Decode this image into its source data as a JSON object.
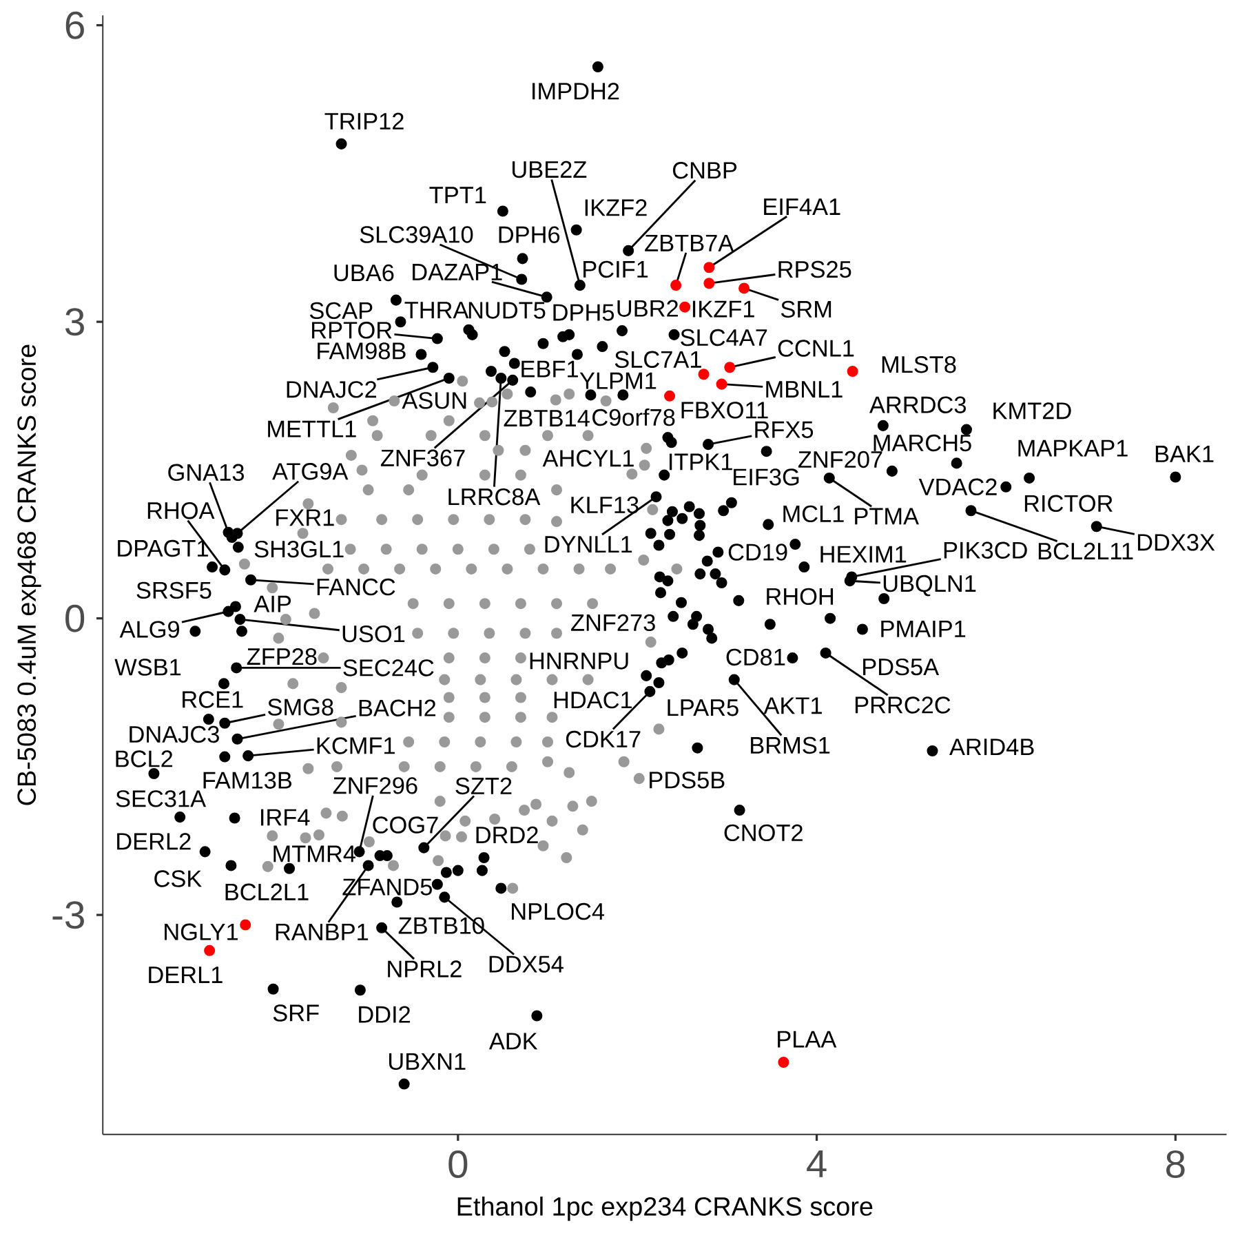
{
  "chart_data": {
    "type": "scatter",
    "xlabel": "Ethanol 1pc exp234 CRANKS score",
    "ylabel": "CB-5083 0.4uM exp468 CRANKS score",
    "xlim": [
      -3.96,
      8.57
    ],
    "ylim": [
      -5.22,
      6.1
    ],
    "xticks": [
      0,
      4,
      8
    ],
    "yticks": [
      -3,
      0,
      3,
      6
    ],
    "marker": "circle",
    "series": [
      {
        "color": "#999999",
        "x": [
          -1.39,
          0.05,
          -0.71,
          1.24,
          1.09,
          0.24,
          0.55,
          1.65,
          0.38,
          -1.19,
          -1.07,
          -1.67,
          -1.73,
          -2.38,
          -2.07,
          -1.92,
          -2.0,
          -1.84,
          -2.0,
          -1.67,
          1.94,
          2.07,
          2.15,
          1.85,
          1.24,
          0.87,
          2.1,
          2.08,
          2.17,
          2.44,
          2.24,
          2.02,
          -2.07,
          -2.12,
          -1.7,
          -1.55,
          -1.47,
          -1.29,
          -0.99,
          -0.72,
          -0.22,
          -0.14,
          0.08,
          0.41,
          0.74,
          1.05,
          1.39,
          1.21,
          0.95,
          0.61,
          0.04,
          1.28,
          1.49,
          -0.95,
          -0.1,
          -0.9,
          -0.3,
          0.3,
          1.0,
          1.45,
          0.45,
          0.75,
          -0.4,
          0.3,
          0.7,
          -1.0,
          -0.55,
          1.1,
          -1.3,
          -0.85,
          -0.45,
          -0.05,
          0.35,
          0.75,
          1.1,
          -1.2,
          -0.8,
          -0.4,
          0.0,
          0.4,
          0.8,
          -1.45,
          -1.05,
          -0.65,
          -0.25,
          0.15,
          0.55,
          0.95,
          1.35,
          1.7,
          -0.5,
          -0.1,
          0.3,
          0.7,
          1.1,
          1.5,
          -1.6,
          -0.45,
          -0.05,
          0.35,
          0.75,
          1.1,
          -1.5,
          -0.1,
          0.3,
          0.7,
          -0.15,
          0.25,
          0.65,
          1.05,
          1.45,
          -1.3,
          -0.1,
          0.3,
          0.7,
          -1.3,
          -0.1,
          0.3,
          0.7,
          1.05,
          -0.55,
          -0.15,
          0.25,
          0.65,
          1.0,
          -1.35,
          -0.6,
          -0.2,
          0.2,
          0.6,
          1.0,
          -0.2
        ],
        "values": [
          2.13,
          2.4,
          2.2,
          2.27,
          2.21,
          2.18,
          2.27,
          2.2,
          2.19,
          1.65,
          1.5,
          1.16,
          0.86,
          0.55,
          0.31,
          -0.01,
          -0.2,
          -0.66,
          -1.07,
          -1.52,
          1.46,
          0.59,
          -0.24,
          -1.45,
          -1.56,
          -1.88,
          1.72,
          1.55,
          1.1,
          0.5,
          -1.12,
          -1.62,
          -2.2,
          -2.51,
          -2.22,
          -2.19,
          -1.97,
          -2.0,
          -2.26,
          -2.5,
          -2.45,
          -2.2,
          -2.05,
          -2.03,
          -1.94,
          -2.05,
          -2.14,
          -2.42,
          -2.3,
          -2.73,
          -2.21,
          -1.9,
          -1.85,
          2.0,
          2.0,
          1.85,
          1.85,
          1.85,
          1.85,
          1.85,
          1.7,
          1.7,
          1.45,
          1.45,
          1.45,
          1.3,
          1.3,
          1.3,
          1.0,
          1.0,
          1.0,
          1.0,
          1.0,
          1.0,
          0.98,
          0.7,
          0.7,
          0.7,
          0.7,
          0.7,
          0.7,
          0.5,
          0.5,
          0.5,
          0.5,
          0.5,
          0.5,
          0.5,
          0.5,
          0.5,
          0.15,
          0.15,
          0.15,
          0.15,
          0.15,
          0.15,
          0.05,
          -0.15,
          -0.15,
          -0.15,
          -0.15,
          -0.15,
          -0.4,
          -0.4,
          -0.4,
          -0.4,
          -0.62,
          -0.62,
          -0.62,
          -0.62,
          -0.62,
          -0.7,
          -0.8,
          -0.8,
          -0.8,
          -1.05,
          -1.0,
          -1.0,
          -1.0,
          -1.0,
          -1.25,
          -1.25,
          -1.25,
          -1.25,
          -1.25,
          -1.5,
          -1.5,
          -1.5,
          -1.5,
          -1.5,
          -1.45,
          -1.85
        ]
      },
      {
        "color": "#000000",
        "x": [
          1.56,
          -1.3,
          0.5,
          1.32,
          1.9,
          0.72,
          0.71,
          0.99,
          1.36,
          -0.69,
          -0.64,
          -0.23,
          0.12,
          0.16,
          1.17,
          1.24,
          1.83,
          -0.41,
          -0.28,
          -0.1,
          0.52,
          0.63,
          0.37,
          0.48,
          0.61,
          0.81,
          0.95,
          1.33,
          1.61,
          1.48,
          1.84,
          2.41,
          2.34,
          2.38,
          2.79,
          3.44,
          2.3,
          4.14,
          4.84,
          4.74,
          5.67,
          5.56,
          6.11,
          6.37,
          8.0,
          7.12,
          5.72,
          4.39,
          4.37,
          3.86,
          3.76,
          2.9,
          2.78,
          3.46,
          3.48,
          3.13,
          4.15,
          4.75,
          4.51,
          3.73,
          4.1,
          3.08,
          2.67,
          5.29,
          3.14,
          2.21,
          2.39,
          2.34,
          2.58,
          2.5,
          2.69,
          2.7,
          2.36,
          2.69,
          2.96,
          3.05,
          2.15,
          2.24,
          2.7,
          2.87,
          2.94,
          2.25,
          2.34,
          2.26,
          2.49,
          2.4,
          2.66,
          2.62,
          2.79,
          2.83,
          2.5,
          2.35,
          2.27,
          2.1,
          2.24,
          2.14,
          -2.56,
          -2.52,
          -2.46,
          -2.45,
          -2.74,
          -2.6,
          -2.31,
          -2.56,
          -2.48,
          -2.93,
          -2.43,
          -2.41,
          -2.47,
          -2.61,
          -2.78,
          -2.6,
          -2.46,
          -2.34,
          -2.6,
          -3.39,
          -3.1,
          -2.49,
          -2.82,
          -2.53,
          -1.88,
          -1.1,
          -1.0,
          -0.87,
          -0.79,
          -0.38,
          -0.23,
          -0.13,
          0.0,
          0.29,
          0.27,
          0.48,
          -0.68,
          -0.15,
          -0.85,
          -2.06,
          -1.09,
          0.88,
          -0.6
        ],
        "values": [
          5.58,
          4.8,
          4.12,
          3.93,
          3.72,
          3.64,
          3.43,
          3.25,
          3.37,
          3.22,
          3.0,
          2.83,
          2.92,
          2.87,
          2.85,
          2.87,
          2.91,
          2.67,
          2.54,
          2.43,
          2.7,
          2.58,
          2.5,
          2.43,
          2.41,
          2.29,
          2.78,
          2.67,
          2.75,
          2.26,
          2.26,
          2.87,
          1.83,
          1.78,
          1.76,
          1.69,
          1.45,
          1.42,
          1.49,
          1.95,
          1.91,
          1.57,
          1.33,
          1.42,
          1.43,
          0.93,
          1.09,
          0.42,
          0.38,
          0.52,
          0.75,
          0.67,
          0.58,
          0.95,
          -0.06,
          0.18,
          0.0,
          0.2,
          -0.11,
          -0.4,
          -0.35,
          -0.62,
          -1.31,
          -1.34,
          -1.94,
          1.23,
          1.08,
          0.99,
          1.13,
          1.01,
          1.06,
          0.94,
          0.85,
          0.84,
          1.09,
          1.17,
          0.86,
          0.74,
          0.45,
          0.45,
          0.36,
          0.42,
          0.38,
          0.26,
          0.16,
          0.02,
          0.02,
          -0.06,
          -0.11,
          -0.2,
          -0.35,
          -0.42,
          -0.45,
          -0.58,
          -0.65,
          -0.74,
          0.87,
          0.82,
          0.86,
          0.72,
          0.52,
          0.49,
          0.39,
          0.07,
          0.12,
          -0.13,
          -0.01,
          -0.13,
          -0.5,
          -0.66,
          -1.02,
          -1.06,
          -1.22,
          -1.39,
          -1.4,
          -1.57,
          -2.01,
          -2.02,
          -2.36,
          -2.5,
          -2.53,
          -2.36,
          -2.5,
          -2.4,
          -2.4,
          -2.32,
          -2.69,
          -2.57,
          -2.55,
          -2.42,
          -2.55,
          -2.73,
          -2.87,
          -2.82,
          -3.13,
          -3.75,
          -3.76,
          -4.02,
          -4.71
        ]
      },
      {
        "color": "#ff0000",
        "x": [
          -2.37,
          -2.77,
          3.63,
          2.43,
          2.8,
          2.8,
          3.19,
          2.53,
          2.74,
          3.03,
          2.94,
          2.36,
          4.4
        ],
        "values": [
          -3.1,
          -3.36,
          -4.49,
          3.37,
          3.55,
          3.39,
          3.34,
          3.15,
          2.47,
          2.54,
          2.37,
          2.25,
          2.5
        ]
      }
    ],
    "annotations": [
      {
        "text": "IMPDH2",
        "x": 1.56,
        "y": 5.58
      },
      {
        "text": "TRIP12",
        "x": -1.3,
        "y": 4.8
      },
      {
        "text": "UBE2Z",
        "x": 1.36,
        "y": 3.37
      },
      {
        "text": "CNBP",
        "x": 1.9,
        "y": 3.72
      },
      {
        "text": "EIF4A1",
        "x": 2.8,
        "y": 3.55
      },
      {
        "text": "TPT1",
        "x": 0.5,
        "y": 4.12
      },
      {
        "text": "IKZF2",
        "x": 1.32,
        "y": 3.93
      },
      {
        "text": "SLC39A10",
        "x": 0.71,
        "y": 3.43
      },
      {
        "text": "DPH6",
        "x": 0.72,
        "y": 3.64
      },
      {
        "text": "ZBTB7A",
        "x": 2.43,
        "y": 3.37
      },
      {
        "text": "RPS25",
        "x": 2.8,
        "y": 3.39
      },
      {
        "text": "UBA6",
        "x": -0.69,
        "y": 3.22
      },
      {
        "text": "DAZAP1",
        "x": 0.99,
        "y": 3.25
      },
      {
        "text": "PCIF1",
        "x": 1.36,
        "y": 3.37
      },
      {
        "text": "SCAP",
        "x": -0.64,
        "y": 3.0
      },
      {
        "text": "THRA",
        "x": 0.12,
        "y": 2.92
      },
      {
        "text": "NUDT5",
        "x": 0.16,
        "y": 2.87
      },
      {
        "text": "DPH5",
        "x": 1.24,
        "y": 2.87
      },
      {
        "text": "UBR2",
        "x": 1.83,
        "y": 2.91
      },
      {
        "text": "IKZF1",
        "x": 2.53,
        "y": 3.15
      },
      {
        "text": "SRM",
        "x": 3.19,
        "y": 3.34
      },
      {
        "text": "FAM98B",
        "x": -0.41,
        "y": 2.67
      },
      {
        "text": "RPTOR",
        "x": -0.23,
        "y": 2.83
      },
      {
        "text": "SLC4A7",
        "x": 2.74,
        "y": 2.47
      },
      {
        "text": "SLC7A1",
        "x": 2.41,
        "y": 2.87
      },
      {
        "text": "CCNL1",
        "x": 3.03,
        "y": 2.54
      },
      {
        "text": "MLST8",
        "x": 4.4,
        "y": 2.5
      },
      {
        "text": "DNAJC2",
        "x": -0.28,
        "y": 2.54
      },
      {
        "text": "EBF1",
        "x": 0.63,
        "y": 2.58
      },
      {
        "text": "YLPM1",
        "x": 1.48,
        "y": 2.26
      },
      {
        "text": "MBNL1",
        "x": 2.94,
        "y": 2.37
      },
      {
        "text": "ASUN",
        "x": -0.1,
        "y": 2.43
      },
      {
        "text": "ARRDC3",
        "x": 4.74,
        "y": 1.95
      },
      {
        "text": "FBXO11",
        "x": 2.36,
        "y": 2.25
      },
      {
        "text": "KMT2D",
        "x": 5.67,
        "y": 1.91
      },
      {
        "text": "C9orf78",
        "x": 1.84,
        "y": 2.26
      },
      {
        "text": "ZBTB14",
        "x": 0.81,
        "y": 2.29
      },
      {
        "text": "METTL1",
        "x": -0.1,
        "y": 2.43
      },
      {
        "text": "RFX5",
        "x": 2.79,
        "y": 1.76
      },
      {
        "text": "ZNF207",
        "x": 4.84,
        "y": 1.49
      },
      {
        "text": "MARCH5",
        "x": 5.56,
        "y": 1.57
      },
      {
        "text": "MAPKAP1",
        "x": 6.37,
        "y": 1.42
      },
      {
        "text": "BAK1",
        "x": 8.0,
        "y": 1.43
      },
      {
        "text": "ZNF367",
        "x": 0.61,
        "y": 2.41
      },
      {
        "text": "AHCYL1",
        "x": 2.34,
        "y": 1.83
      },
      {
        "text": "ITPK1",
        "x": 2.3,
        "y": 1.45
      },
      {
        "text": "EIF3G",
        "x": 3.44,
        "y": 1.69
      },
      {
        "text": "GNA13",
        "x": -2.56,
        "y": 0.87
      },
      {
        "text": "ATG9A",
        "x": -2.46,
        "y": 0.86
      },
      {
        "text": "VDAC2",
        "x": 6.11,
        "y": 1.33
      },
      {
        "text": "LRRC8A",
        "x": 0.48,
        "y": 2.43
      },
      {
        "text": "KLF13",
        "x": 2.34,
        "y": 0.99
      },
      {
        "text": "RICTOR",
        "x": 7.12,
        "y": 0.93
      },
      {
        "text": "RHOA",
        "x": -2.6,
        "y": 0.49
      },
      {
        "text": "FXR1",
        "x": -2.52,
        "y": 0.82
      },
      {
        "text": "MCL1",
        "x": 3.46,
        "y": 0.95
      },
      {
        "text": "PTMA",
        "x": 4.14,
        "y": 1.42
      },
      {
        "text": "DDX3X",
        "x": 7.12,
        "y": 0.93
      },
      {
        "text": "DYNLL1",
        "x": 2.21,
        "y": 1.23
      },
      {
        "text": "DPAGT1",
        "x": -2.74,
        "y": 0.52
      },
      {
        "text": "SH3GL1",
        "x": -2.45,
        "y": 0.72
      },
      {
        "text": "CD19",
        "x": 2.9,
        "y": 0.67
      },
      {
        "text": "PIK3CD",
        "x": 4.39,
        "y": 0.42
      },
      {
        "text": "BCL2L11",
        "x": 5.72,
        "y": 1.09
      },
      {
        "text": "HEXIM1",
        "x": 3.86,
        "y": 0.52
      },
      {
        "text": "FANCC",
        "x": -2.31,
        "y": 0.39
      },
      {
        "text": "SRSF5",
        "x": -2.93,
        "y": -0.13
      },
      {
        "text": "UBQLN1",
        "x": 4.37,
        "y": 0.38
      },
      {
        "text": "RHOH",
        "x": 3.48,
        "y": -0.06
      },
      {
        "text": "AIP",
        "x": -2.48,
        "y": 0.12
      },
      {
        "text": "ZNF273",
        "x": 2.4,
        "y": 0.02
      },
      {
        "text": "USO1",
        "x": -2.43,
        "y": -0.01
      },
      {
        "text": "ALG9",
        "x": -2.56,
        "y": 0.07
      },
      {
        "text": "PMAIP1",
        "x": 4.51,
        "y": -0.11
      },
      {
        "text": "ZFP28",
        "x": -2.47,
        "y": -0.5
      },
      {
        "text": "CD81",
        "x": 3.73,
        "y": -0.4
      },
      {
        "text": "HNRNPU",
        "x": 2.27,
        "y": -0.45
      },
      {
        "text": "PDS5A",
        "x": 4.1,
        "y": -0.35
      },
      {
        "text": "SEC24C",
        "x": -2.47,
        "y": -0.5
      },
      {
        "text": "WSB1",
        "x": -2.61,
        "y": -0.66
      },
      {
        "text": "RCE1",
        "x": -2.78,
        "y": -1.02
      },
      {
        "text": "HDAC1",
        "x": 2.1,
        "y": -0.58
      },
      {
        "text": "LPAR5",
        "x": 2.24,
        "y": -0.65
      },
      {
        "text": "AKT1",
        "x": 3.73,
        "y": -0.4
      },
      {
        "text": "PRRC2C",
        "x": 4.1,
        "y": -0.35
      },
      {
        "text": "SMG8",
        "x": -2.6,
        "y": -1.06
      },
      {
        "text": "BACH2",
        "x": -2.46,
        "y": -1.22
      },
      {
        "text": "DNAJC3",
        "x": -2.78,
        "y": -1.02
      },
      {
        "text": "CDK17",
        "x": 2.14,
        "y": -0.74
      },
      {
        "text": "BRMS1",
        "x": 3.08,
        "y": -0.62
      },
      {
        "text": "KCMF1",
        "x": -2.34,
        "y": -1.39
      },
      {
        "text": "ARID4B",
        "x": 5.29,
        "y": -1.34
      },
      {
        "text": "BCL2",
        "x": -3.39,
        "y": -1.57
      },
      {
        "text": "PDS5B",
        "x": 2.67,
        "y": -1.31
      },
      {
        "text": "FAM13B",
        "x": -2.6,
        "y": -1.4
      },
      {
        "text": "ZNF296",
        "x": -1.1,
        "y": -2.36
      },
      {
        "text": "SZT2",
        "x": -0.38,
        "y": -2.32
      },
      {
        "text": "SEC31A",
        "x": -3.1,
        "y": -2.01
      },
      {
        "text": "IRF4",
        "x": -2.49,
        "y": -2.02
      },
      {
        "text": "COG7",
        "x": -0.79,
        "y": -2.4
      },
      {
        "text": "CNOT2",
        "x": 3.14,
        "y": -1.94
      },
      {
        "text": "DRD2",
        "x": 0.29,
        "y": -2.42
      },
      {
        "text": "DERL2",
        "x": -2.82,
        "y": -2.36
      },
      {
        "text": "MTMR4",
        "x": -0.87,
        "y": -2.4
      },
      {
        "text": "CSK",
        "x": -2.53,
        "y": -2.5
      },
      {
        "text": "ZFAND5",
        "x": -0.13,
        "y": -2.57
      },
      {
        "text": "BCL2L1",
        "x": -1.88,
        "y": -2.53
      },
      {
        "text": "NPLOC4",
        "x": 0.48,
        "y": -2.73
      },
      {
        "text": "ZBTB10",
        "x": -0.68,
        "y": -2.87
      },
      {
        "text": "NGLY1",
        "x": -2.37,
        "y": -3.1
      },
      {
        "text": "RANBP1",
        "x": -1.0,
        "y": -2.5
      },
      {
        "text": "DDX54",
        "x": -0.15,
        "y": -2.82
      },
      {
        "text": "NPRL2",
        "x": -0.85,
        "y": -3.13
      },
      {
        "text": "DERL1",
        "x": -2.77,
        "y": -3.36
      },
      {
        "text": "SRF",
        "x": -2.06,
        "y": -3.75
      },
      {
        "text": "DDI2",
        "x": -1.09,
        "y": -3.76
      },
      {
        "text": "PLAA",
        "x": 3.63,
        "y": -4.49
      },
      {
        "text": "ADK",
        "x": 0.88,
        "y": -4.02
      },
      {
        "text": "UBXN1",
        "x": -0.6,
        "y": -4.71
      }
    ]
  }
}
